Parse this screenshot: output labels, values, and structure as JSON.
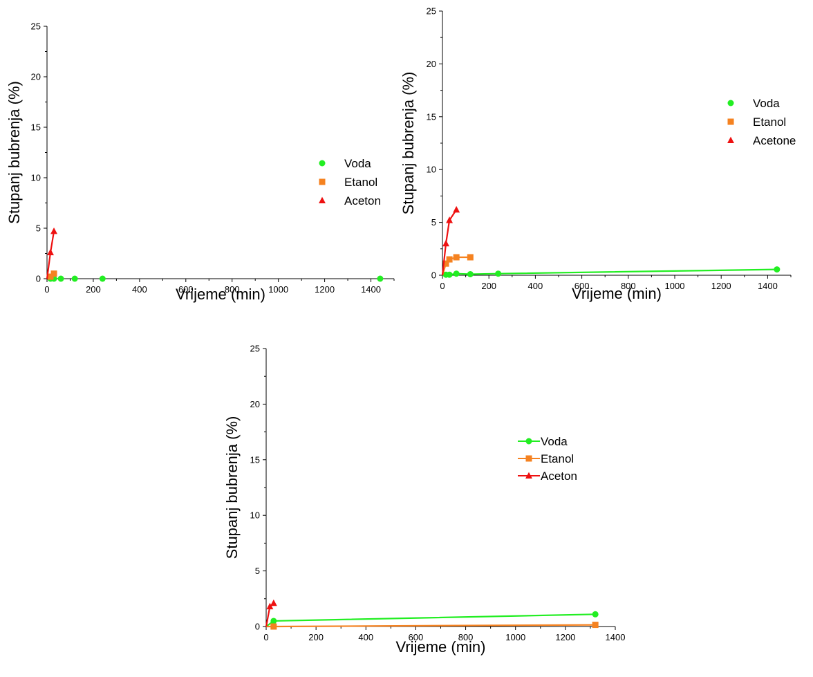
{
  "chart_data": [
    {
      "type": "scatter",
      "xlabel": "Vrijeme (min)",
      "ylabel": "Stupanj bubrenja (%)",
      "xlim": [
        0,
        1500
      ],
      "ylim": [
        0,
        25
      ],
      "xticks": [
        0,
        200,
        400,
        600,
        800,
        1000,
        1200,
        1400
      ],
      "yticks": [
        0,
        5,
        10,
        15,
        20,
        25
      ],
      "legend_position": "right",
      "legend_style": "markers",
      "series": [
        {
          "name": "Voda",
          "color": "#22ee22",
          "marker": "circle",
          "x": [
            15,
            30,
            60,
            120,
            240,
            1440
          ],
          "y": [
            0.0,
            0.0,
            0.0,
            0.0,
            0.0,
            0.0
          ],
          "line": false
        },
        {
          "name": "Etanol",
          "color": "#f58220",
          "marker": "square",
          "x": [
            15,
            30
          ],
          "y": [
            0.2,
            0.5
          ],
          "line": false
        },
        {
          "name": "Aceton",
          "color": "#ee1111",
          "marker": "triangle",
          "x": [
            15,
            30
          ],
          "y": [
            2.6,
            4.7
          ],
          "line": true
        }
      ]
    },
    {
      "type": "scatter",
      "xlabel": "Vrijeme (min)",
      "ylabel": "Stupanj bubrenja (%)",
      "xlim": [
        0,
        1500
      ],
      "ylim": [
        0,
        25
      ],
      "xticks": [
        0,
        200,
        400,
        600,
        800,
        1000,
        1200,
        1400
      ],
      "yticks": [
        0,
        5,
        10,
        15,
        20,
        25
      ],
      "legend_position": "right",
      "legend_style": "markers",
      "series": [
        {
          "name": "Voda",
          "color": "#22ee22",
          "marker": "circle",
          "x": [
            15,
            30,
            60,
            120,
            240,
            1440
          ],
          "y": [
            0.05,
            0.05,
            0.15,
            0.1,
            0.15,
            0.55
          ],
          "line": true
        },
        {
          "name": "Etanol",
          "color": "#f58220",
          "marker": "square",
          "x": [
            15,
            30,
            60,
            120
          ],
          "y": [
            1.1,
            1.5,
            1.7,
            1.7
          ],
          "line": true
        },
        {
          "name": "Acetone",
          "color": "#ee1111",
          "marker": "triangle",
          "x": [
            15,
            30,
            60
          ],
          "y": [
            3.0,
            5.2,
            6.2
          ],
          "line": true
        }
      ]
    },
    {
      "type": "line",
      "xlabel": "Vrijeme (min)",
      "ylabel": "Stupanj bubrenja (%)",
      "xlim": [
        0,
        1400
      ],
      "ylim": [
        0,
        25
      ],
      "xticks": [
        0,
        200,
        400,
        600,
        800,
        1000,
        1200,
        1400
      ],
      "yticks": [
        0,
        5,
        10,
        15,
        20,
        25
      ],
      "legend_position": "right",
      "legend_style": "line-marker",
      "series": [
        {
          "name": "Voda",
          "color": "#22ee22",
          "marker": "circle",
          "x": [
            30,
            1320
          ],
          "y": [
            0.5,
            1.1
          ],
          "line": true
        },
        {
          "name": "Etanol",
          "color": "#f58220",
          "marker": "square",
          "x": [
            30,
            1320
          ],
          "y": [
            0.0,
            0.15
          ],
          "line": true
        },
        {
          "name": "Aceton",
          "color": "#ee1111",
          "marker": "triangle",
          "x": [
            15,
            30
          ],
          "y": [
            1.8,
            2.1
          ],
          "line": true
        }
      ]
    }
  ]
}
